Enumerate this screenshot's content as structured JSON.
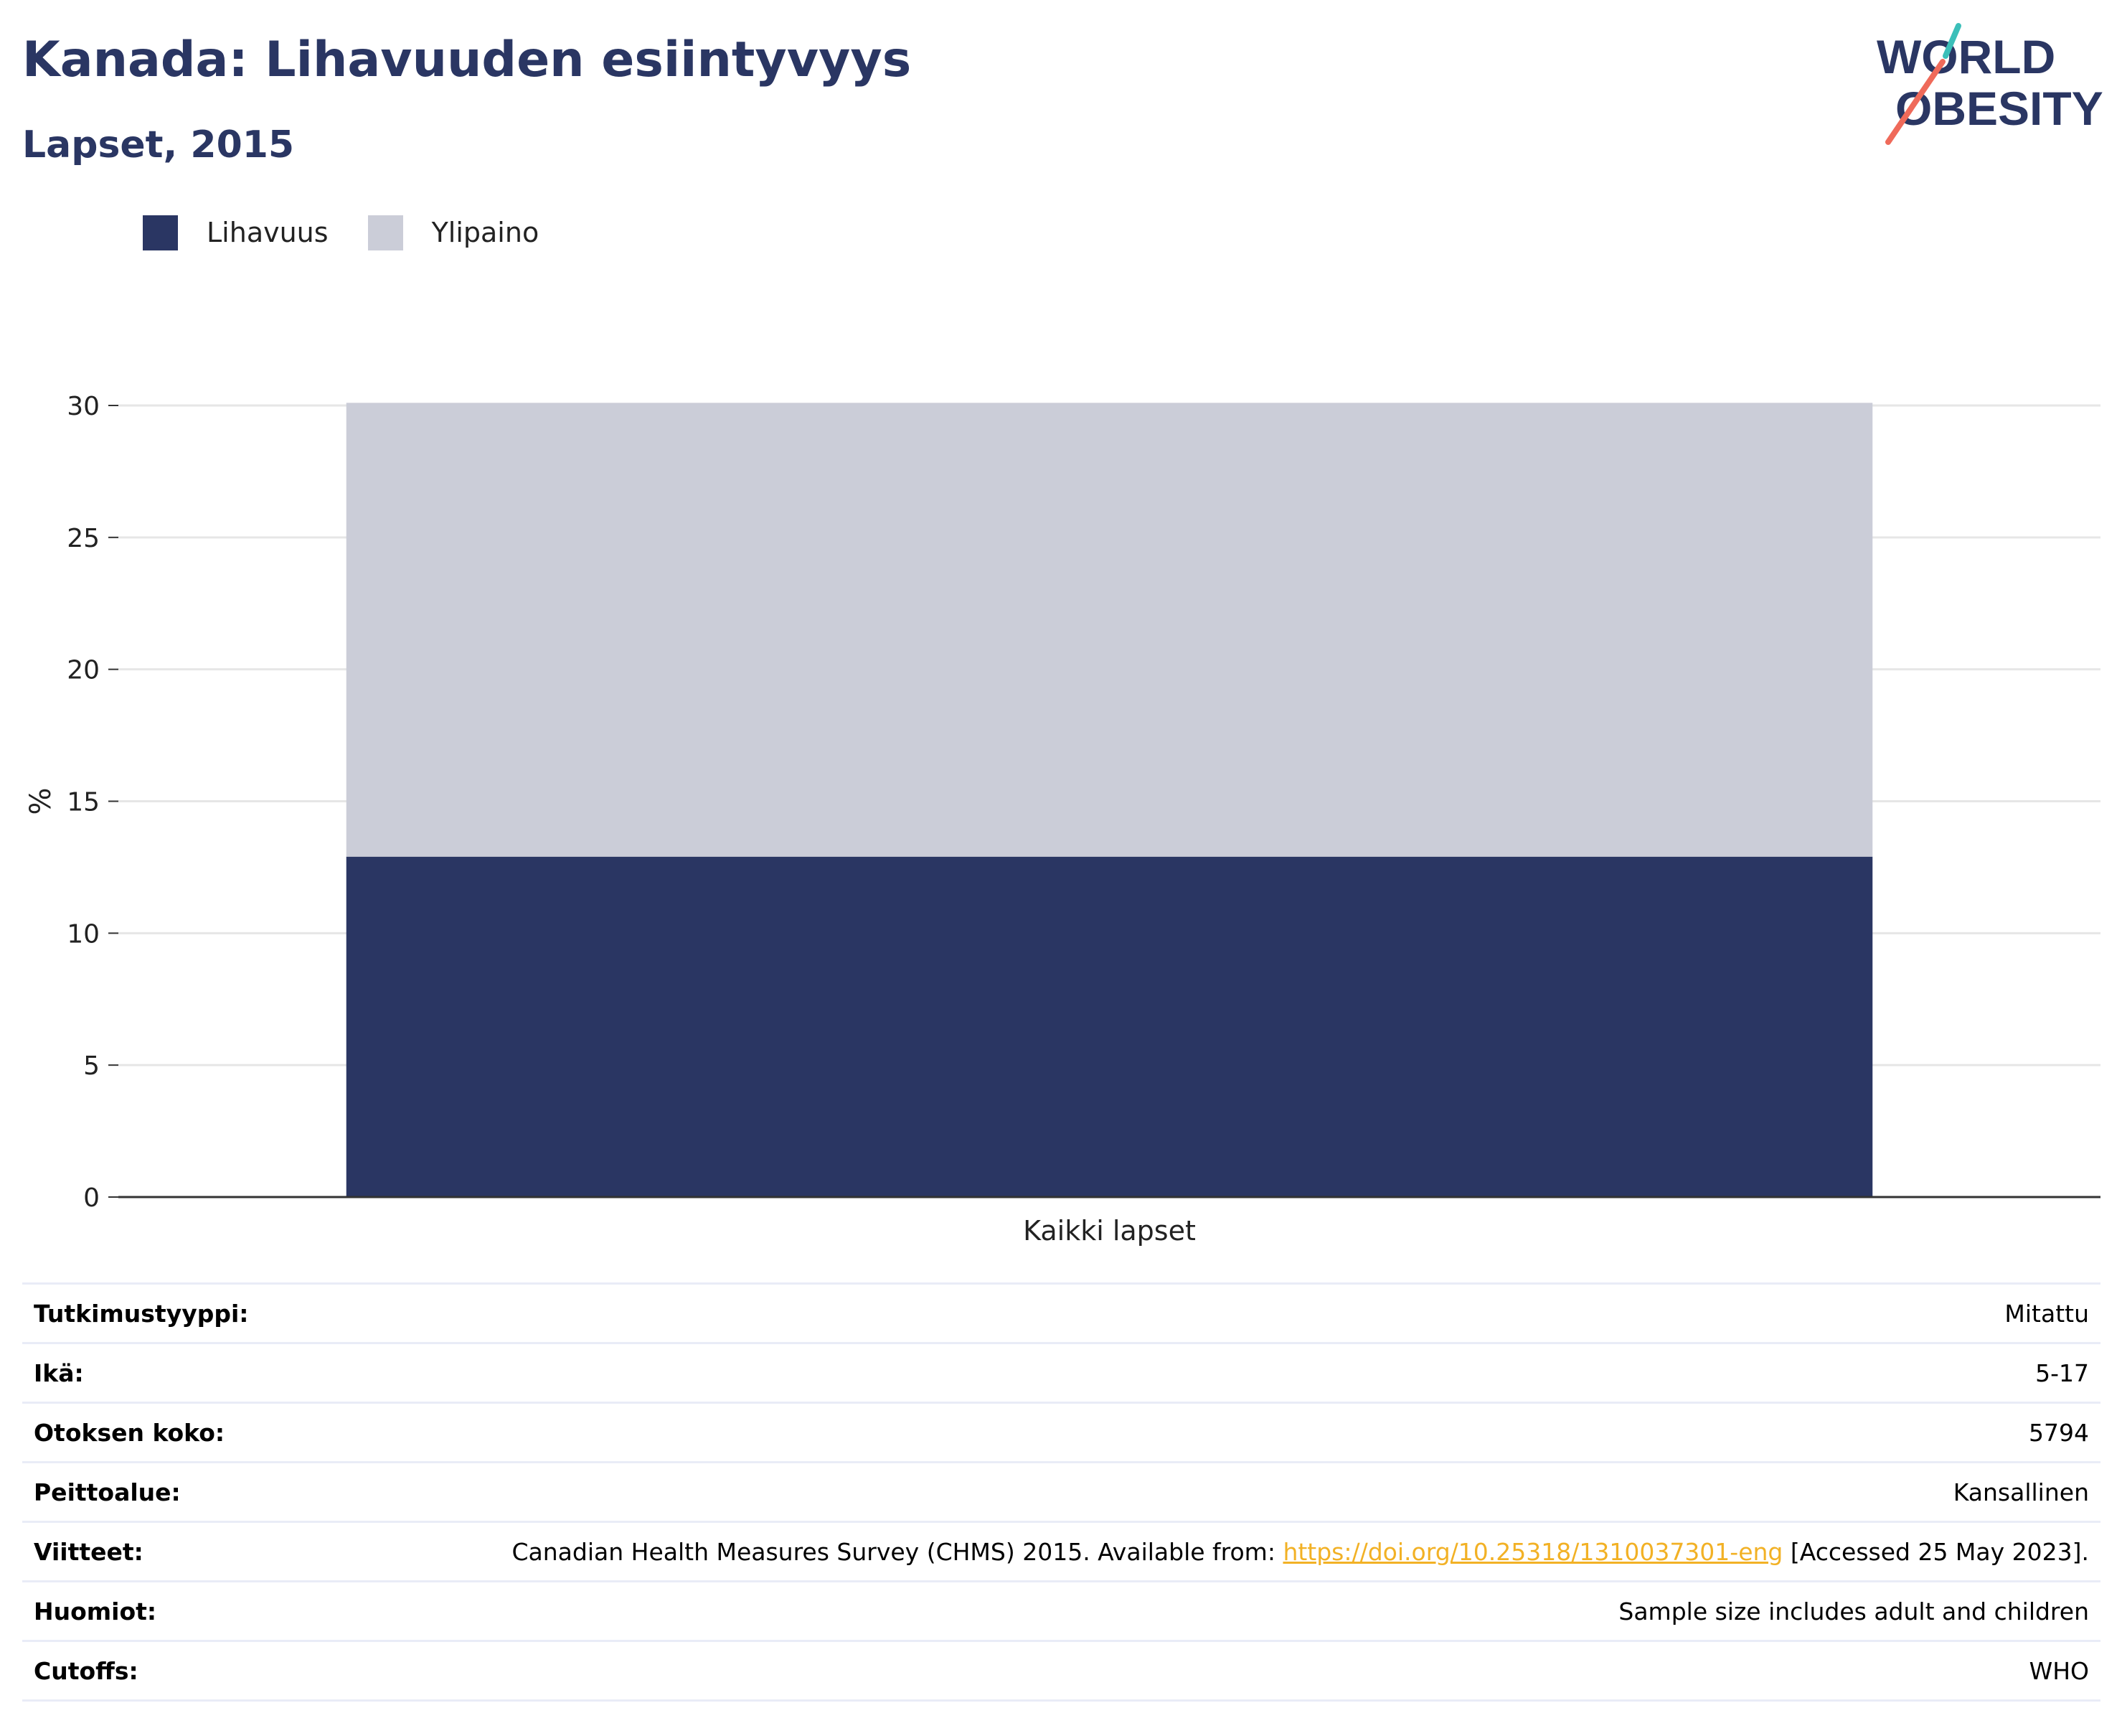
{
  "header": {
    "title": "Kanada: Lihavuuden esiintyvyys",
    "subtitle": "Lapset, 2015"
  },
  "logo": {
    "line1": "WORLD",
    "line2": "OBESITY",
    "text_color": "#2a3663",
    "accent_teal": "#3bbfb9",
    "accent_coral": "#ef6a5a"
  },
  "legend": [
    {
      "label": "Lihavuus",
      "color": "#2a3663"
    },
    {
      "label": "Ylipaino",
      "color": "#cbcdd8"
    }
  ],
  "chart_data": {
    "type": "bar",
    "stacked": true,
    "categories": [
      "Kaikki lapset"
    ],
    "series": [
      {
        "name": "Lihavuus",
        "values": [
          12.9
        ],
        "color": "#2a3663"
      },
      {
        "name": "Ylipaino",
        "values": [
          17.2
        ],
        "color": "#cbcdd8"
      }
    ],
    "xlabel": "",
    "ylabel": "%",
    "ylim": [
      0,
      30
    ],
    "yticks": [
      0,
      5,
      10,
      15,
      20,
      25,
      30
    ],
    "grid": true,
    "legend_position": "top-left"
  },
  "info": {
    "rows": [
      {
        "label": "Tutkimustyyppi:",
        "value": "Mitattu"
      },
      {
        "label": "Ikä:",
        "value": "5-17"
      },
      {
        "label": "Otoksen koko:",
        "value": "5794"
      },
      {
        "label": "Peittoalue:",
        "value": "Kansallinen"
      },
      {
        "label": "Viitteet:",
        "value_pre": "Canadian Health Measures Survey (CHMS) 2015. Available from: ",
        "link": "https://doi.org/10.25318/1310037301-eng",
        "value_post": " [Accessed 25 May 2023]."
      },
      {
        "label": "Huomiot:",
        "value": "Sample size includes adult and children"
      },
      {
        "label": "Cutoffs:",
        "value": "WHO"
      }
    ]
  }
}
